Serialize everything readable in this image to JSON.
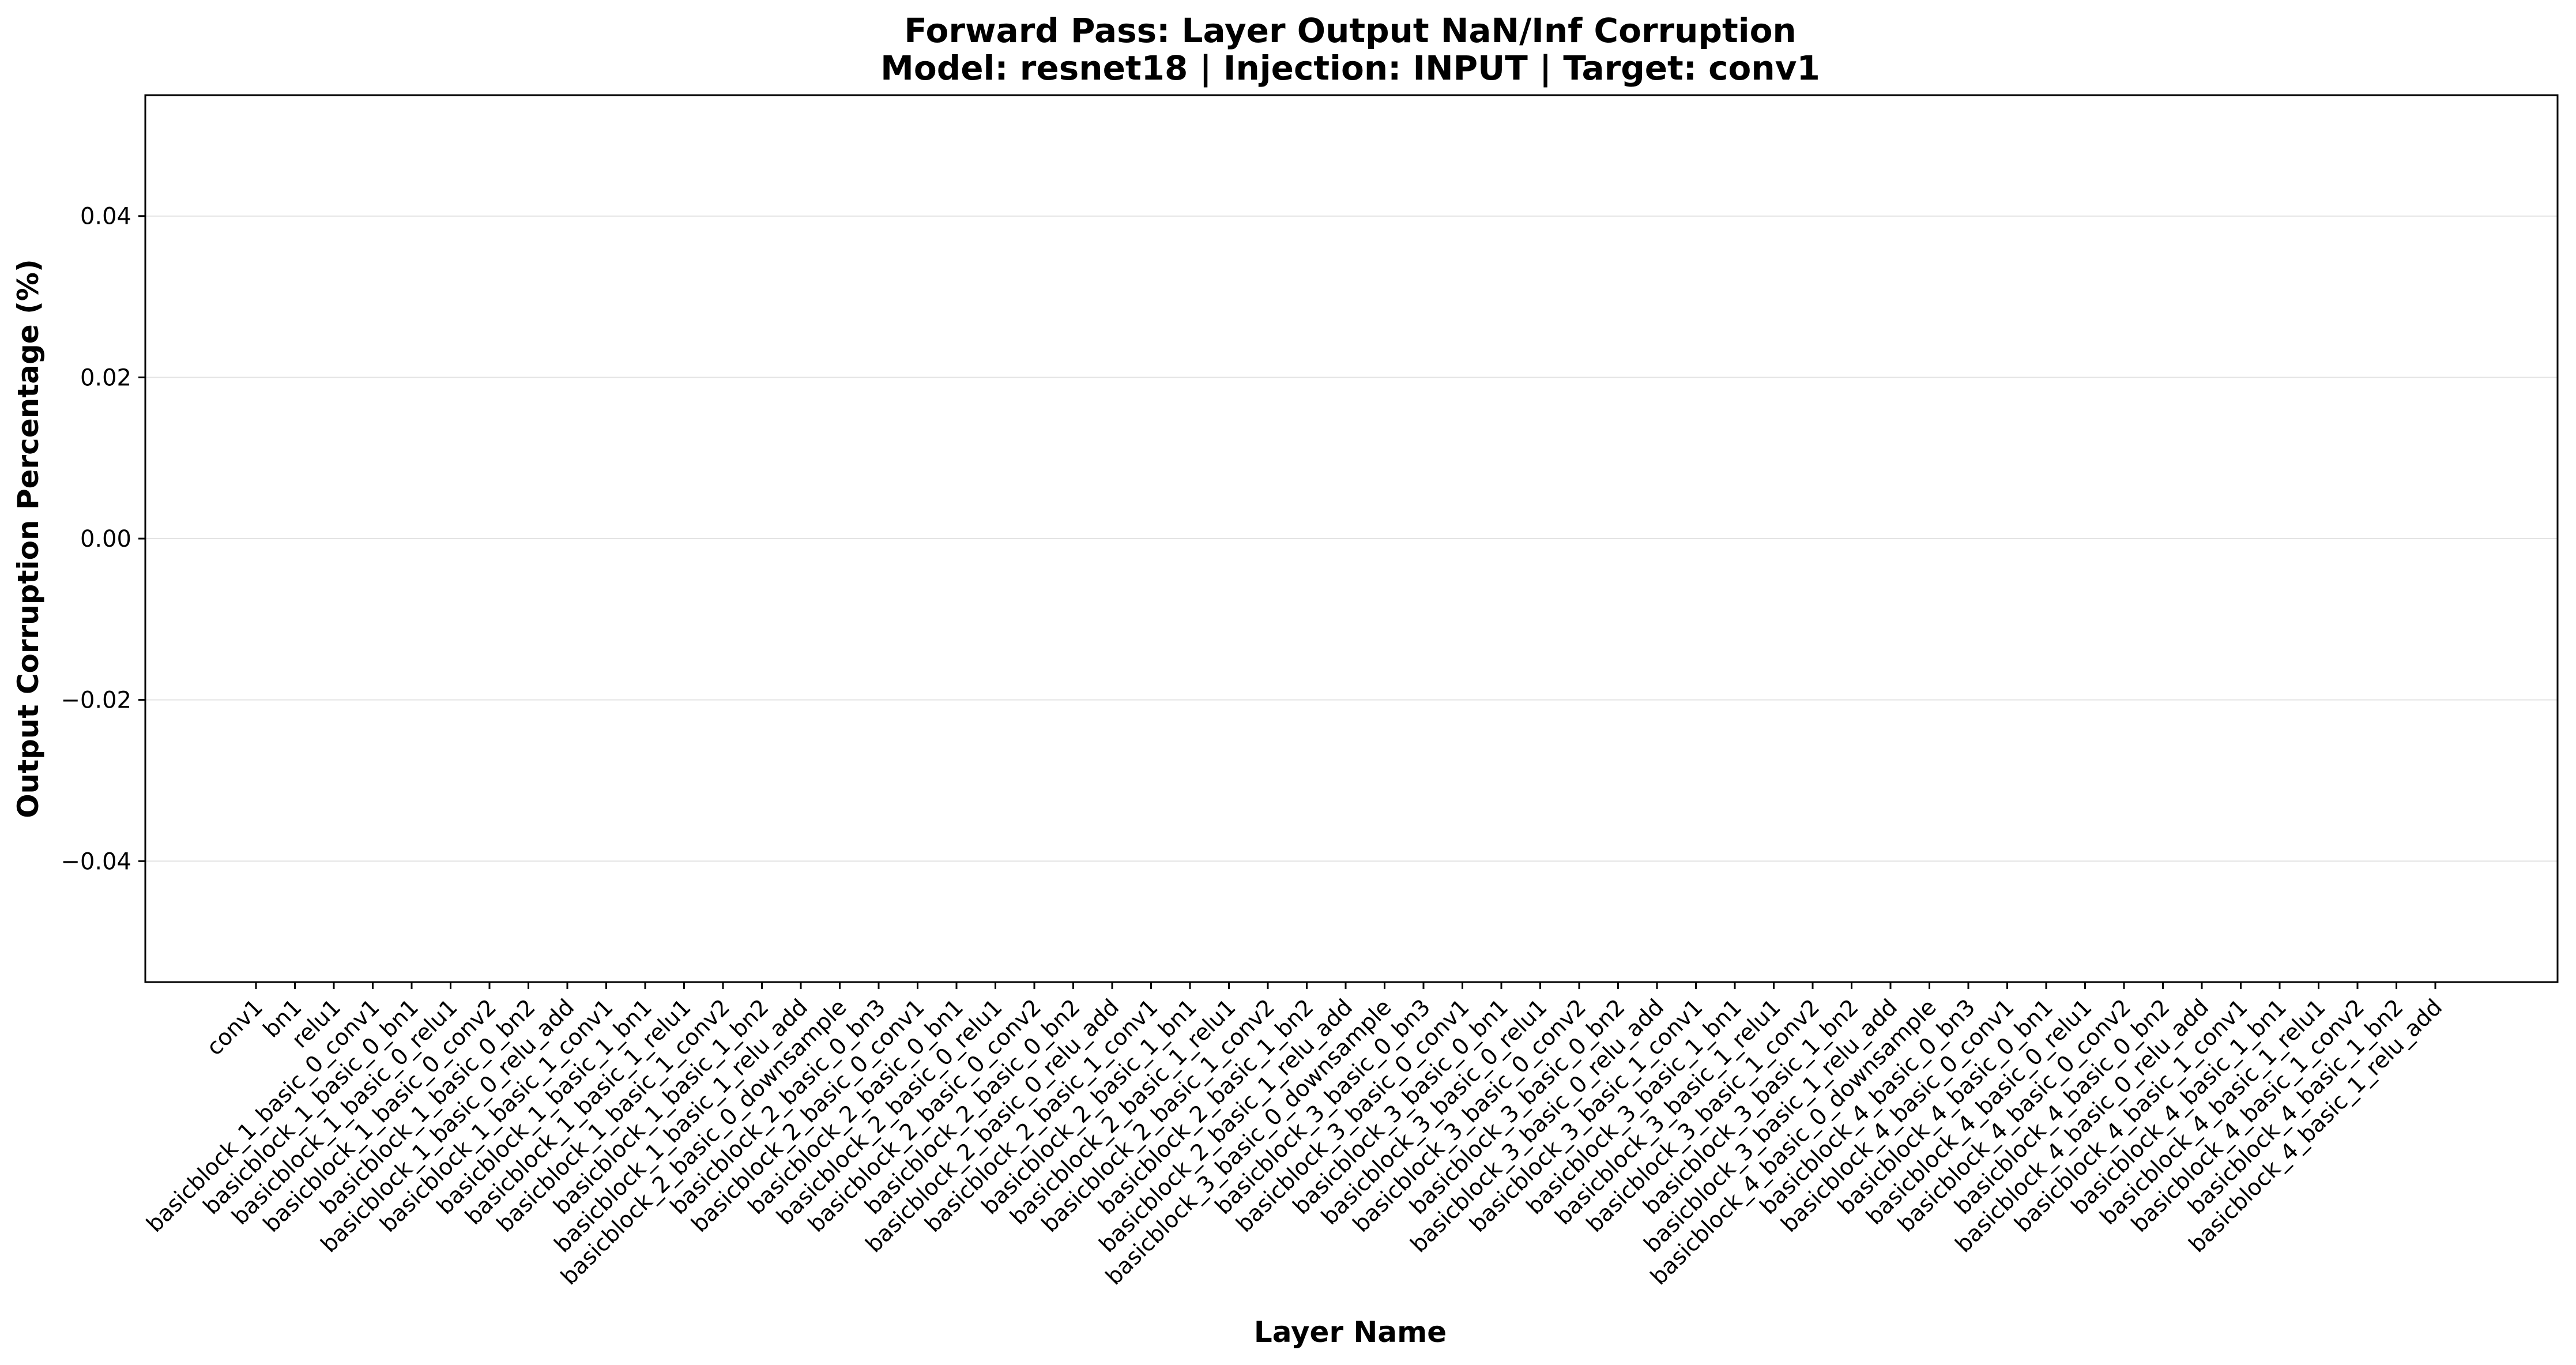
{
  "chart_data": {
    "type": "bar",
    "title": "Forward Pass: Layer Output NaN/Inf Corruption",
    "subtitle": "Model: resnet18 | Injection: INPUT | Target: conv1",
    "xlabel": "Layer Name",
    "ylabel": "Output Corruption Percentage (%)",
    "ylim": [
      -0.055,
      0.055
    ],
    "yticks": [
      0.04,
      0.02,
      0.0,
      -0.02,
      -0.04
    ],
    "ytick_labels": [
      "0.04",
      "0.02",
      "0.00",
      "−0.02",
      "−0.04"
    ],
    "grid": "y",
    "bar_color": "#cd5c5c",
    "categories": [
      "conv1",
      "bn1",
      "relu1",
      "basicblock_1_basic_0_conv1",
      "basicblock_1_basic_0_bn1",
      "basicblock_1_basic_0_relu1",
      "basicblock_1_basic_0_conv2",
      "basicblock_1_basic_0_bn2",
      "basicblock_1_basic_0_relu_add",
      "basicblock_1_basic_1_conv1",
      "basicblock_1_basic_1_bn1",
      "basicblock_1_basic_1_relu1",
      "basicblock_1_basic_1_conv2",
      "basicblock_1_basic_1_bn2",
      "basicblock_1_basic_1_relu_add",
      "basicblock_2_basic_0_downsample",
      "basicblock_2_basic_0_bn3",
      "basicblock_2_basic_0_conv1",
      "basicblock_2_basic_0_bn1",
      "basicblock_2_basic_0_relu1",
      "basicblock_2_basic_0_conv2",
      "basicblock_2_basic_0_bn2",
      "basicblock_2_basic_0_relu_add",
      "basicblock_2_basic_1_conv1",
      "basicblock_2_basic_1_bn1",
      "basicblock_2_basic_1_relu1",
      "basicblock_2_basic_1_conv2",
      "basicblock_2_basic_1_bn2",
      "basicblock_2_basic_1_relu_add",
      "basicblock_3_basic_0_downsample",
      "basicblock_3_basic_0_bn3",
      "basicblock_3_basic_0_conv1",
      "basicblock_3_basic_0_bn1",
      "basicblock_3_basic_0_relu1",
      "basicblock_3_basic_0_conv2",
      "basicblock_3_basic_0_bn2",
      "basicblock_3_basic_0_relu_add",
      "basicblock_3_basic_1_conv1",
      "basicblock_3_basic_1_bn1",
      "basicblock_3_basic_1_relu1",
      "basicblock_3_basic_1_conv2",
      "basicblock_3_basic_1_bn2",
      "basicblock_3_basic_1_relu_add",
      "basicblock_4_basic_0_downsample",
      "basicblock_4_basic_0_bn3",
      "basicblock_4_basic_0_conv1",
      "basicblock_4_basic_0_bn1",
      "basicblock_4_basic_0_relu1",
      "basicblock_4_basic_0_conv2",
      "basicblock_4_basic_0_bn2",
      "basicblock_4_basic_0_relu_add",
      "basicblock_4_basic_1_conv1",
      "basicblock_4_basic_1_bn1",
      "basicblock_4_basic_1_relu1",
      "basicblock_4_basic_1_conv2",
      "basicblock_4_basic_1_bn2",
      "basicblock_4_basic_1_relu_add"
    ],
    "values": [
      0,
      0,
      0,
      0,
      0,
      0,
      0,
      0,
      0,
      0,
      0,
      0,
      0,
      0,
      0,
      0,
      0,
      0,
      0,
      0,
      0,
      0,
      0,
      0,
      0,
      0,
      0,
      0,
      0,
      0,
      0,
      0,
      0,
      0,
      0,
      0,
      0,
      0,
      0,
      0,
      0,
      0,
      0,
      0,
      0,
      0,
      0,
      0,
      0,
      0,
      0,
      0,
      0,
      0,
      0,
      0,
      0
    ]
  }
}
